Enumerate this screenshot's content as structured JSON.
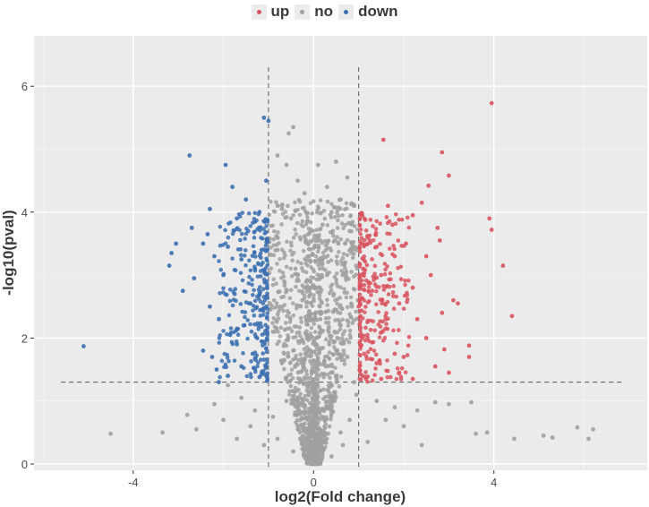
{
  "legend": {
    "items": [
      {
        "label": "up",
        "color": "#d9545f"
      },
      {
        "label": "no",
        "color": "#a0a0a0"
      },
      {
        "label": "down",
        "color": "#3b6fb0"
      }
    ]
  },
  "chart_data": {
    "type": "scatter",
    "title": "",
    "xlabel": "log2(Fold change)",
    "ylabel": "-log10(pval)",
    "xlim": [
      -6.2,
      7.4
    ],
    "ylim": [
      -0.1,
      6.8
    ],
    "x_ticks": [
      -4,
      0,
      4
    ],
    "x_tick_labels": [
      "-4",
      "0",
      "4"
    ],
    "y_ticks": [
      0,
      2,
      4,
      6
    ],
    "y_tick_labels": [
      "0",
      "2",
      "4",
      "6"
    ],
    "grid": true,
    "legend_position": "top",
    "panel_background": "#ebebeb",
    "thresholds": {
      "fold_change": [
        -1,
        1
      ],
      "pval_line": 1.3
    },
    "series": [
      {
        "name": "up",
        "color": "#d9545f",
        "points": [
          [
            3.95,
            5.73
          ],
          [
            2.85,
            4.95
          ],
          [
            1.55,
            5.15
          ],
          [
            3.0,
            4.58
          ],
          [
            2.55,
            4.42
          ],
          [
            2.4,
            4.15
          ],
          [
            1.65,
            4.1
          ],
          [
            2.2,
            3.95
          ],
          [
            1.75,
            3.8
          ],
          [
            2.75,
            3.75
          ],
          [
            3.9,
            3.9
          ],
          [
            3.95,
            3.72
          ],
          [
            2.8,
            3.55
          ],
          [
            1.2,
            3.6
          ],
          [
            1.4,
            3.45
          ],
          [
            2.05,
            3.5
          ],
          [
            1.8,
            3.3
          ],
          [
            2.5,
            3.3
          ],
          [
            4.2,
            3.15
          ],
          [
            1.1,
            3.1
          ],
          [
            2.6,
            3.0
          ],
          [
            1.5,
            3.0
          ],
          [
            2.2,
            2.8
          ],
          [
            1.3,
            2.75
          ],
          [
            3.1,
            2.6
          ],
          [
            3.2,
            2.55
          ],
          [
            1.9,
            2.55
          ],
          [
            1.0,
            2.5
          ],
          [
            2.85,
            2.4
          ],
          [
            4.4,
            2.35
          ],
          [
            2.3,
            2.3
          ],
          [
            1.6,
            2.15
          ],
          [
            2.5,
            2.0
          ],
          [
            1.2,
            2.0
          ],
          [
            3.45,
            1.88
          ],
          [
            2.9,
            1.82
          ],
          [
            1.8,
            1.75
          ],
          [
            3.45,
            1.7
          ],
          [
            2.0,
            1.7
          ],
          [
            1.4,
            1.6
          ],
          [
            2.7,
            1.55
          ],
          [
            1.9,
            1.45
          ],
          [
            1.05,
            1.42
          ],
          [
            1.5,
            1.35
          ],
          [
            2.2,
            1.35
          ],
          [
            3.0,
            1.45
          ]
        ]
      },
      {
        "name": "no",
        "color": "#a0a0a0",
        "points": [
          [
            -0.55,
            5.25
          ],
          [
            -0.45,
            5.35
          ],
          [
            -0.8,
            4.9
          ],
          [
            -0.6,
            4.75
          ],
          [
            0.1,
            4.75
          ],
          [
            0.5,
            4.8
          ],
          [
            -0.35,
            4.5
          ],
          [
            0.3,
            4.4
          ],
          [
            0.75,
            4.55
          ],
          [
            -0.2,
            4.3
          ],
          [
            0.6,
            4.2
          ],
          [
            0.9,
            4.1
          ],
          [
            -0.7,
            4.05
          ],
          [
            0.4,
            4.0
          ],
          [
            -0.5,
            3.9
          ],
          [
            0.2,
            3.8
          ],
          [
            0.8,
            3.7
          ],
          [
            -0.3,
            3.6
          ],
          [
            0.55,
            3.5
          ],
          [
            -0.8,
            3.4
          ],
          [
            -0.1,
            3.3
          ],
          [
            0.7,
            3.2
          ],
          [
            -0.4,
            3.1
          ],
          [
            0.3,
            3.0
          ],
          [
            -0.65,
            2.9
          ],
          [
            0.05,
            2.8
          ],
          [
            0.45,
            2.7
          ],
          [
            -0.25,
            2.6
          ],
          [
            0.85,
            2.5
          ],
          [
            -0.55,
            2.4
          ],
          [
            0.15,
            2.3
          ],
          [
            0.6,
            2.2
          ],
          [
            -0.9,
            2.1
          ],
          [
            -0.15,
            2.0
          ],
          [
            0.35,
            1.9
          ],
          [
            -0.45,
            1.8
          ],
          [
            0.75,
            1.7
          ],
          [
            -0.7,
            1.6
          ],
          [
            0.1,
            1.5
          ],
          [
            0.5,
            1.4
          ],
          [
            -0.3,
            1.35
          ],
          [
            0.9,
            1.3
          ],
          [
            -1.9,
            1.25
          ],
          [
            -1.6,
            1.05
          ],
          [
            -2.2,
            0.95
          ],
          [
            -1.3,
            0.85
          ],
          [
            -2.0,
            0.7
          ],
          [
            -1.4,
            0.6
          ],
          [
            -2.6,
            0.55
          ],
          [
            -1.7,
            0.4
          ],
          [
            -4.5,
            0.48
          ],
          [
            -3.35,
            0.5
          ],
          [
            -2.8,
            0.78
          ],
          [
            1.4,
            1.0
          ],
          [
            1.8,
            0.9
          ],
          [
            2.3,
            0.85
          ],
          [
            2.7,
            0.98
          ],
          [
            3.0,
            0.95
          ],
          [
            3.5,
            0.98
          ],
          [
            1.6,
            0.7
          ],
          [
            2.0,
            0.6
          ],
          [
            3.6,
            0.48
          ],
          [
            3.85,
            0.5
          ],
          [
            4.45,
            0.4
          ],
          [
            5.1,
            0.45
          ],
          [
            5.3,
            0.42
          ],
          [
            5.85,
            0.58
          ],
          [
            6.1,
            0.4
          ],
          [
            6.2,
            0.55
          ],
          [
            2.4,
            0.3
          ],
          [
            1.2,
            0.35
          ],
          [
            -1.1,
            0.3
          ],
          [
            -0.6,
            1.0
          ],
          [
            -0.3,
            0.8
          ],
          [
            0.0,
            0.6
          ],
          [
            0.3,
            0.9
          ],
          [
            0.6,
            0.5
          ],
          [
            -0.8,
            0.4
          ],
          [
            0.2,
            0.25
          ],
          [
            -0.2,
            0.15
          ],
          [
            0.05,
            0.05
          ],
          [
            0.4,
            0.12
          ],
          [
            -0.45,
            0.2
          ],
          [
            0.8,
            0.7
          ],
          [
            -0.9,
            0.75
          ],
          [
            0.95,
            1.1
          ],
          [
            -0.05,
            1.15
          ],
          [
            0.25,
            0.45
          ],
          [
            -0.35,
            0.55
          ],
          [
            0.65,
            0.3
          ]
        ]
      },
      {
        "name": "down",
        "color": "#3b6fb0",
        "points": [
          [
            -1.1,
            5.5
          ],
          [
            -1.0,
            5.45
          ],
          [
            -2.75,
            4.9
          ],
          [
            -1.95,
            4.75
          ],
          [
            -1.8,
            4.4
          ],
          [
            -1.05,
            4.5
          ],
          [
            -1.5,
            4.2
          ],
          [
            -2.3,
            4.05
          ],
          [
            -1.2,
            4.0
          ],
          [
            -1.7,
            3.9
          ],
          [
            -2.7,
            3.75
          ],
          [
            -2.35,
            3.65
          ],
          [
            -1.45,
            3.7
          ],
          [
            -2.45,
            3.5
          ],
          [
            -3.05,
            3.5
          ],
          [
            -1.9,
            3.45
          ],
          [
            -1.15,
            3.4
          ],
          [
            -3.15,
            3.35
          ],
          [
            -2.2,
            3.3
          ],
          [
            -1.6,
            3.25
          ],
          [
            -3.2,
            3.15
          ],
          [
            -1.3,
            3.1
          ],
          [
            -2.0,
            3.0
          ],
          [
            -2.65,
            2.95
          ],
          [
            -1.05,
            2.9
          ],
          [
            -2.9,
            2.75
          ],
          [
            -1.75,
            2.7
          ],
          [
            -1.4,
            2.55
          ],
          [
            -2.3,
            2.5
          ],
          [
            -1.15,
            2.45
          ],
          [
            -2.1,
            2.3
          ],
          [
            -1.55,
            2.2
          ],
          [
            -1.85,
            2.05
          ],
          [
            -1.25,
            2.0
          ],
          [
            -1.7,
            1.9
          ],
          [
            -5.1,
            1.87
          ],
          [
            -2.45,
            1.8
          ],
          [
            -2.25,
            1.7
          ],
          [
            -1.35,
            1.75
          ],
          [
            -1.6,
            1.55
          ],
          [
            -2.15,
            1.5
          ],
          [
            -1.05,
            1.55
          ],
          [
            -1.9,
            1.4
          ],
          [
            -1.2,
            1.38
          ],
          [
            -2.1,
            1.3
          ]
        ]
      }
    ]
  }
}
